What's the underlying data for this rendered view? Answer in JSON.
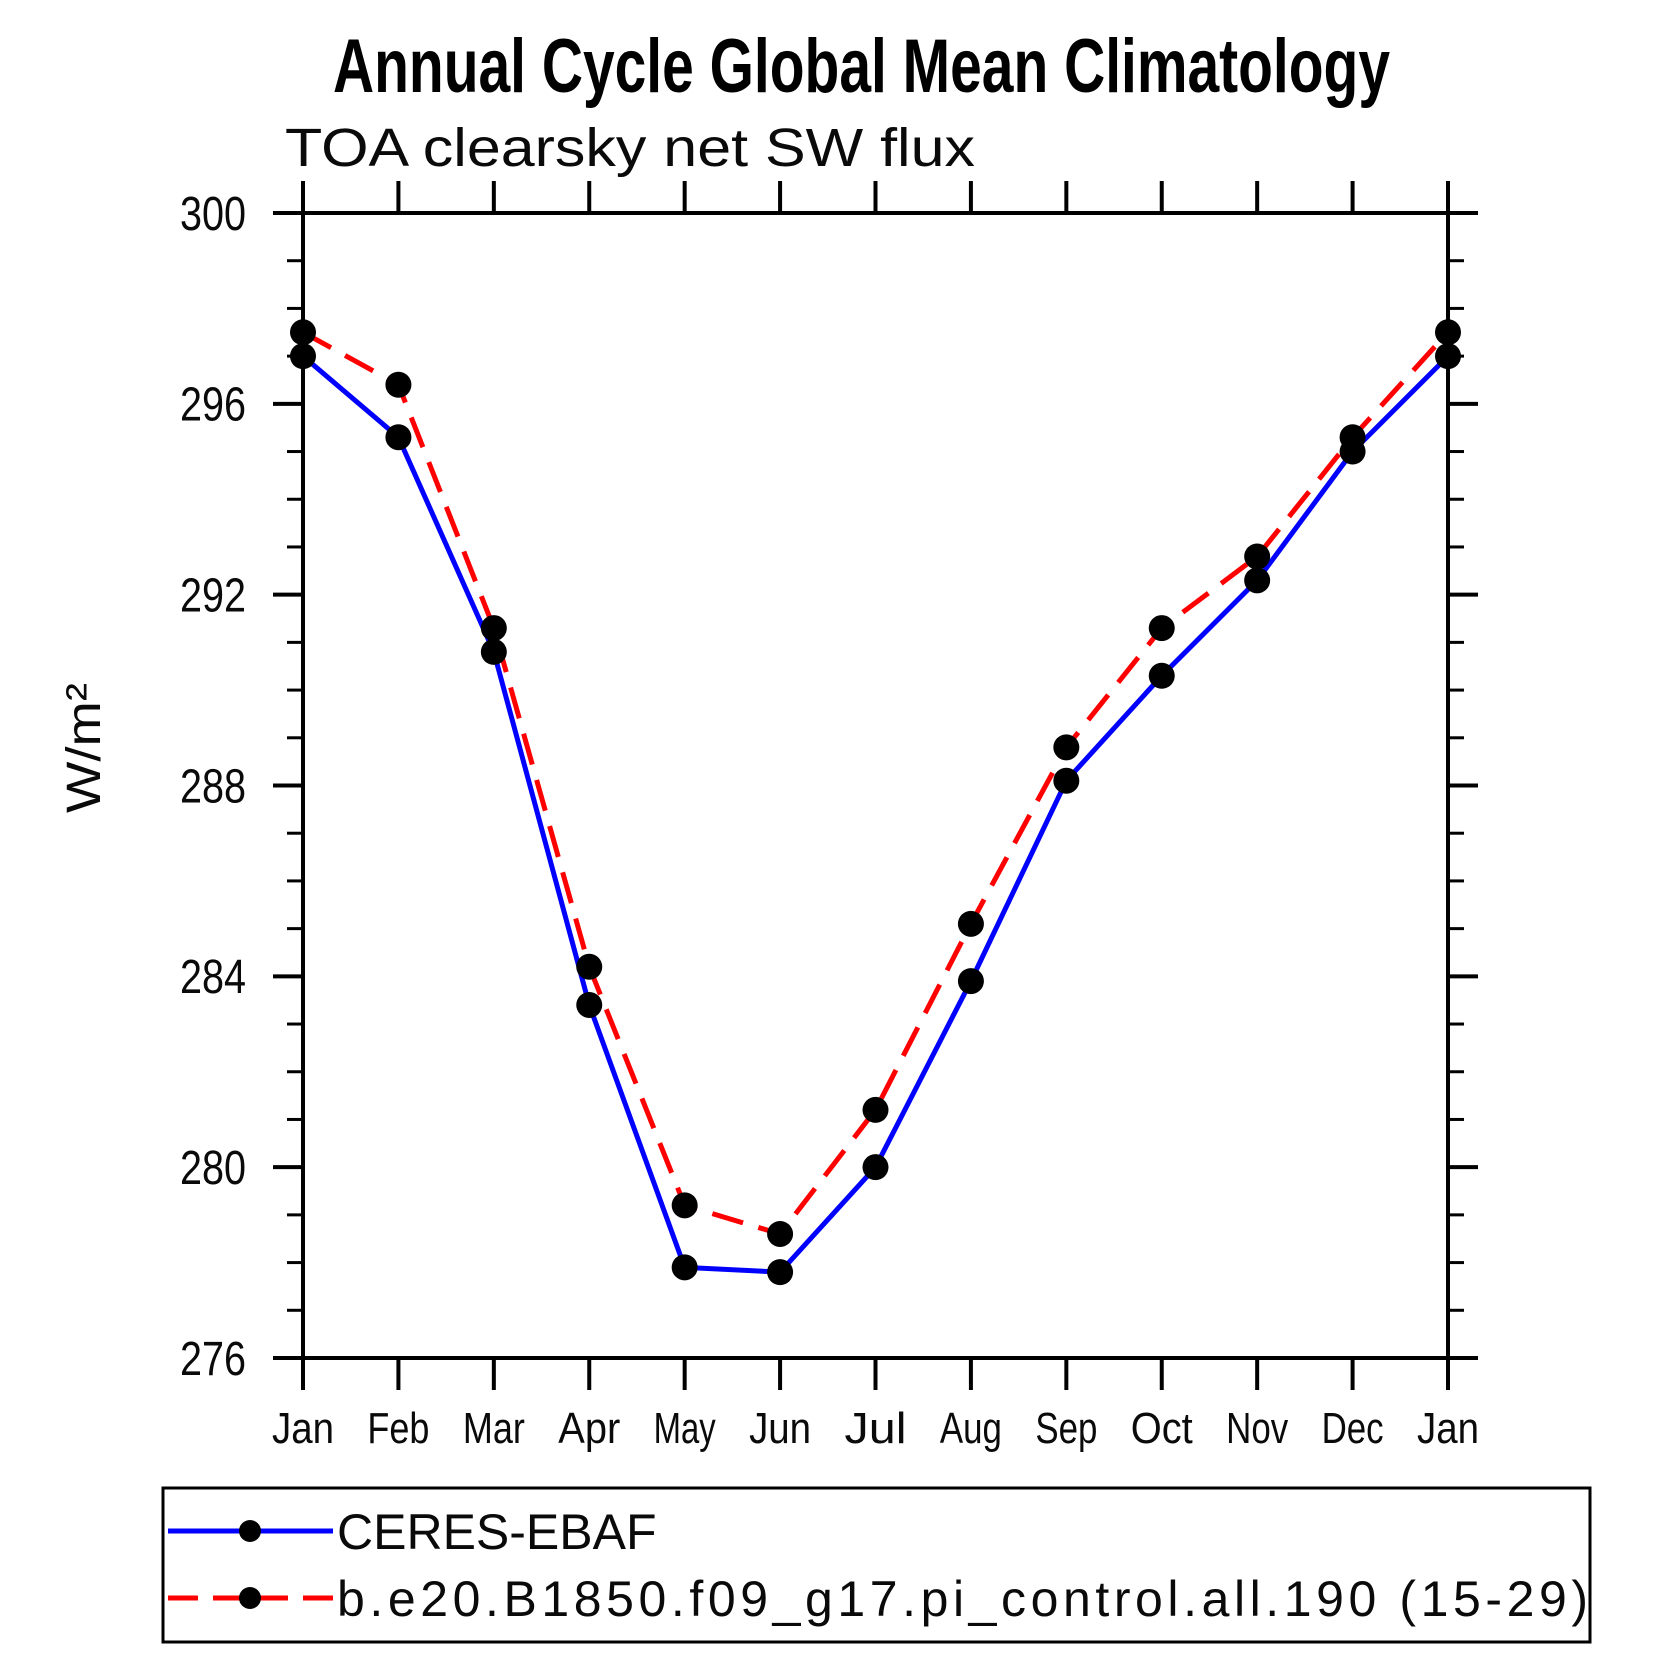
{
  "title": "Annual Cycle Global Mean Climatology",
  "subtitle": "TOA clearsky net SW flux",
  "y_axis_label": "W/m²",
  "chart_data": {
    "type": "line",
    "categories": [
      "Jan",
      "Feb",
      "Mar",
      "Apr",
      "May",
      "Jun",
      "Jul",
      "Aug",
      "Sep",
      "Oct",
      "Nov",
      "Dec",
      "Jan"
    ],
    "xlabel": "",
    "ylabel": "W/m²",
    "ylim": [
      276,
      300
    ],
    "y_major_step": 4,
    "y_minor_step": 1,
    "y_major_ticks": [
      276,
      280,
      284,
      288,
      292,
      296,
      300
    ],
    "grid": false,
    "legend_position": "bottom",
    "series": [
      {
        "name": "CERES-EBAF",
        "color": "#0000ff",
        "line_style": "solid",
        "marker": "filled-circle",
        "marker_color": "#000000",
        "values": [
          297.0,
          295.3,
          290.8,
          283.4,
          277.9,
          277.8,
          280.0,
          283.9,
          288.1,
          290.3,
          292.3,
          295.0,
          297.0
        ]
      },
      {
        "name": "b.e20.B1850.f09_g17.pi_control.all.190 (15-29)",
        "color": "#ff0000",
        "line_style": "dashed",
        "marker": "filled-circle",
        "marker_color": "#000000",
        "values": [
          297.5,
          296.4,
          291.3,
          284.2,
          279.2,
          278.6,
          281.2,
          285.1,
          288.8,
          291.3,
          292.8,
          295.3,
          297.5
        ]
      }
    ]
  }
}
